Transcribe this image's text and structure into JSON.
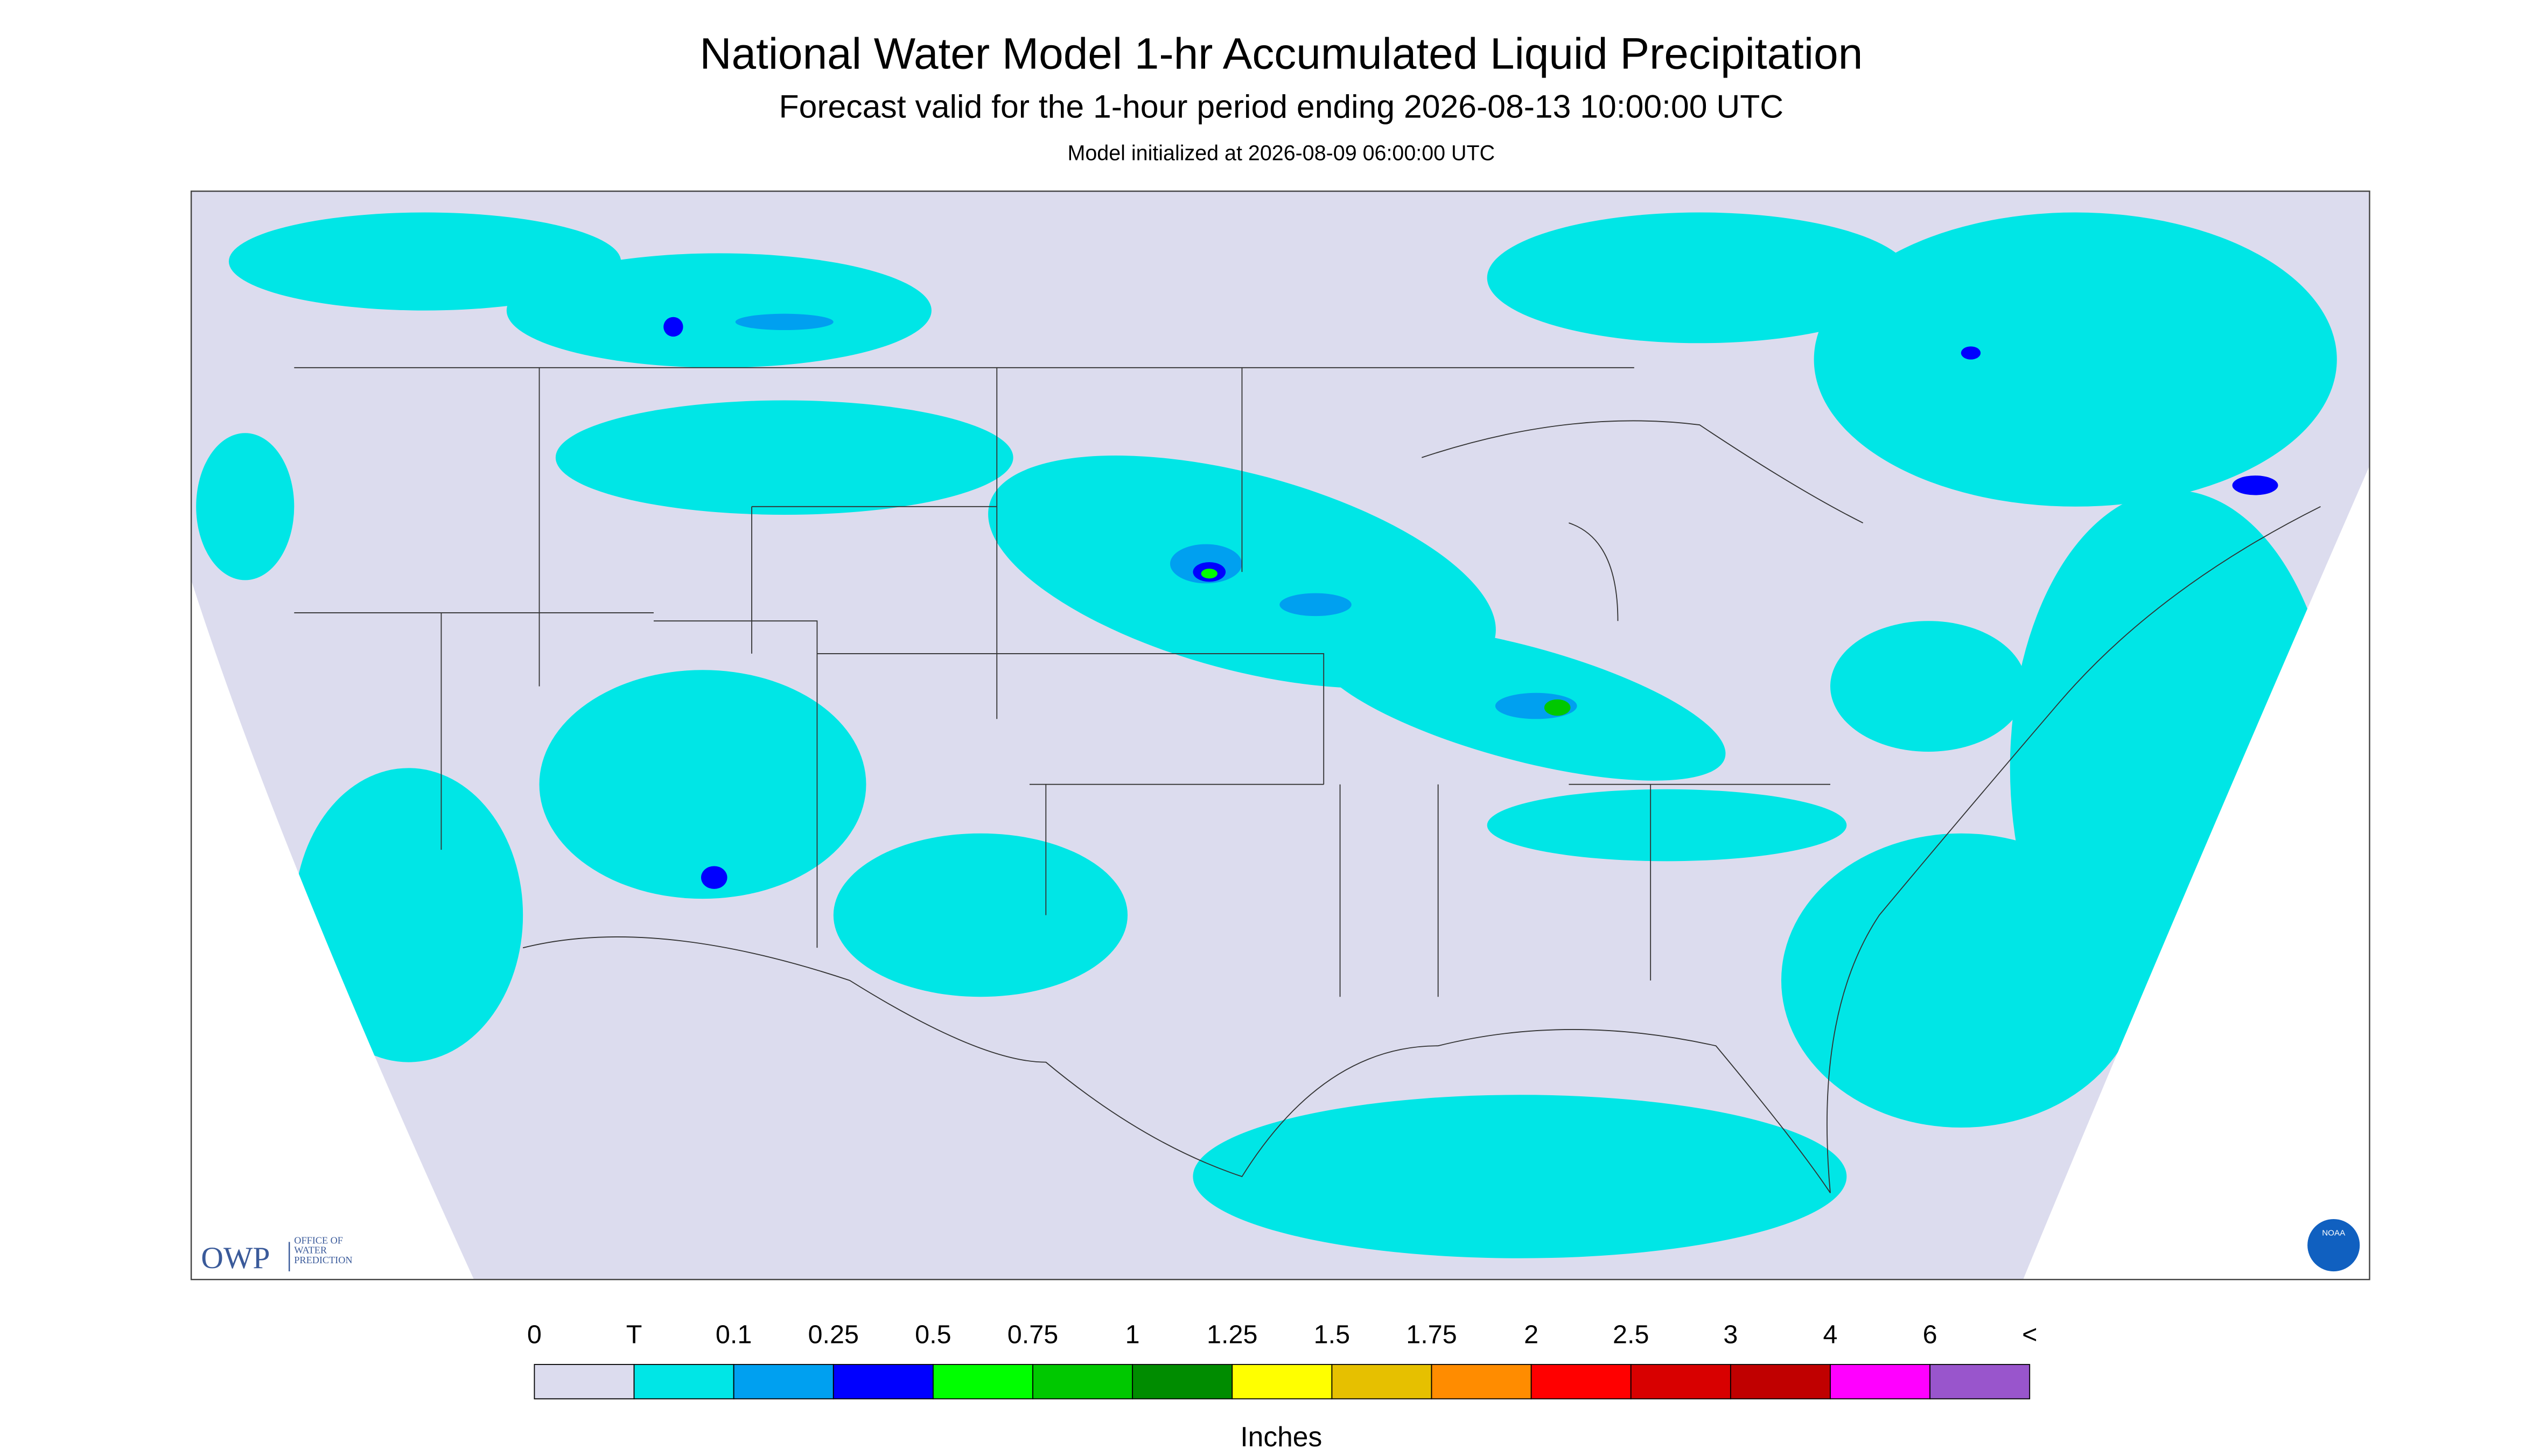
{
  "header": {
    "title": "National Water Model 1-hr Accumulated Liquid Precipitation",
    "subtitle": "Forecast valid for the 1-hour period ending 2026-08-13 10:00:00 UTC",
    "note": "Model initialized at 2026-08-09 06:00:00 UTC"
  },
  "legend": {
    "labels": [
      "0",
      "T",
      "0.1",
      "0.25",
      "0.5",
      "0.75",
      "1",
      "1.25",
      "1.5",
      "1.75",
      "2",
      "2.5",
      "3",
      "4",
      "6",
      "<"
    ],
    "colors": [
      "#dcdcee",
      "#00e6e6",
      "#00a0f0",
      "#0000ff",
      "#00ff00",
      "#00c800",
      "#008c00",
      "#ffff00",
      "#e6c000",
      "#ff8c00",
      "#ff0000",
      "#d80000",
      "#c00000",
      "#ff00ff",
      "#9955cc"
    ],
    "unit": "Inches"
  },
  "logos": {
    "owp": "OWP",
    "owp_text": "OFFICE OF WATER PREDICTION",
    "noaa": "NOAA"
  }
}
